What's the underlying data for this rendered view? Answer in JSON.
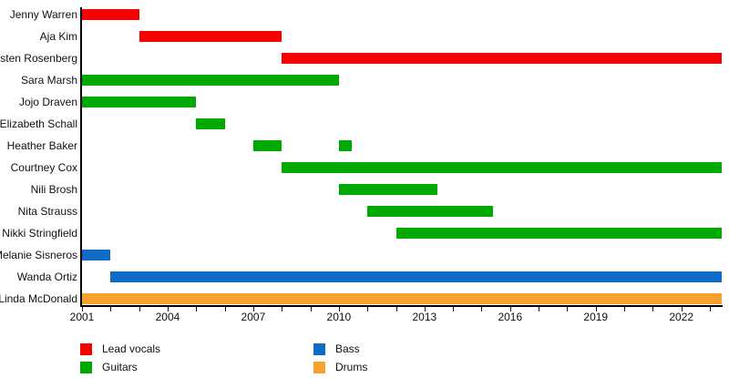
{
  "chart_data": {
    "type": "bar",
    "subtype": "timeline-gantt",
    "title": "",
    "xlabel": "",
    "ylabel": "",
    "xlim": [
      2001,
      2023.4
    ],
    "x_major_ticks": [
      "2001",
      "2004",
      "2007",
      "2010",
      "2013",
      "2016",
      "2019",
      "2022"
    ],
    "x_major_tick_years": [
      2001,
      2004,
      2007,
      2010,
      2013,
      2016,
      2019,
      2022
    ],
    "x_minor_tick_step": 1,
    "grid": "off",
    "legend_position": "bottom",
    "legend": [
      {
        "label": "Lead vocals",
        "color": "#f70000",
        "column": 0,
        "row": 0
      },
      {
        "label": "Guitars",
        "color": "#00a800",
        "column": 0,
        "row": 1
      },
      {
        "label": "Bass",
        "color": "#0f6bc4",
        "column": 1,
        "row": 0
      },
      {
        "label": "Drums",
        "color": "#f9a12f",
        "column": 1,
        "row": 1
      }
    ],
    "members": [
      {
        "name": "Jenny Warren",
        "role": "Lead vocals",
        "segments": [
          [
            2001,
            2003
          ]
        ]
      },
      {
        "name": "Aja Kim",
        "role": "Lead vocals",
        "segments": [
          [
            2003,
            2008
          ]
        ]
      },
      {
        "name": "Kirsten Rosenberg",
        "role": "Lead vocals",
        "segments": [
          [
            2008,
            2023.4
          ]
        ]
      },
      {
        "name": "Sara Marsh",
        "role": "Guitars",
        "segments": [
          [
            2001,
            2010
          ]
        ]
      },
      {
        "name": "Jojo Draven",
        "role": "Guitars",
        "segments": [
          [
            2001,
            2005
          ]
        ]
      },
      {
        "name": "Elizabeth Schall",
        "role": "Guitars",
        "segments": [
          [
            2005,
            2006
          ]
        ]
      },
      {
        "name": "Heather Baker",
        "role": "Guitars",
        "segments": [
          [
            2007,
            2008
          ],
          [
            2010,
            2010.45
          ]
        ]
      },
      {
        "name": "Courtney Cox",
        "role": "Guitars",
        "segments": [
          [
            2008,
            2023.4
          ]
        ]
      },
      {
        "name": "Nili Brosh",
        "role": "Guitars",
        "segments": [
          [
            2010,
            2013.45
          ]
        ]
      },
      {
        "name": "Nita Strauss",
        "role": "Guitars",
        "segments": [
          [
            2011,
            2015.4
          ]
        ]
      },
      {
        "name": "Nikki Stringfield",
        "role": "Guitars",
        "segments": [
          [
            2012,
            2023.4
          ]
        ]
      },
      {
        "name": "Melanie Sisneros",
        "role": "Bass",
        "segments": [
          [
            2001,
            2002
          ]
        ]
      },
      {
        "name": "Wanda Ortiz",
        "role": "Bass",
        "segments": [
          [
            2002,
            2023.4
          ]
        ]
      },
      {
        "name": "Linda McDonald",
        "role": "Drums",
        "segments": [
          [
            2001,
            2023.4
          ]
        ]
      }
    ],
    "colors": {
      "background": "#ffffff",
      "axis": "#000000",
      "text": "#111111",
      "lead_vocals": "#f70000",
      "guitars": "#00a800",
      "bass": "#0f6bc4",
      "drums": "#f9a12f"
    }
  }
}
